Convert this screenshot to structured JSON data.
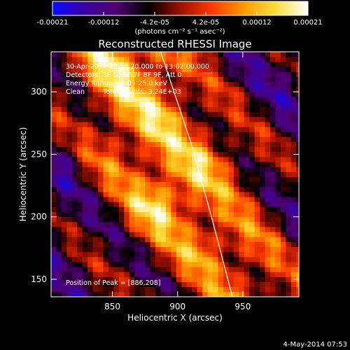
{
  "chart_data": {
    "type": "heatmap",
    "title": "Reconstructed RHESSI Image",
    "xlabel": "Heliocentric X (arcsec)",
    "ylabel": "Heliocentric Y (arcsec)",
    "xlim": [
      803,
      993
    ],
    "ylim": [
      136,
      332
    ],
    "x_ticks": [
      850,
      900,
      950
    ],
    "y_ticks": [
      150,
      200,
      250,
      300
    ],
    "x_tick_labels": [
      "850",
      "900",
      "950"
    ],
    "y_tick_labels": [
      "150",
      "200",
      "250",
      "300"
    ],
    "colorbar": {
      "range": [
        -0.00021,
        0.00021
      ],
      "tick_labels": [
        "-0.00021",
        "-0.00012",
        "-4.2e-05",
        "4.2e-05",
        "0.00012",
        "0.00021"
      ],
      "unit_label": "(photons cm⁻² s⁻¹ asec⁻²)",
      "colormap": [
        "#0a0aff",
        "#3a00a0",
        "#500070",
        "#000000",
        "#9a1000",
        "#ff3a00",
        "#ff9a00",
        "#ffe040",
        "#ffffff"
      ]
    },
    "annotations": {
      "time": "30-Apr-2012 12:58:20.000 to 13:02:00.000",
      "detectors": "Detectors: 3F 5F 6F 7F 8F 9F, Att 0",
      "energy": "Energy Range: 12.0 - 25.0 keV",
      "clean_label": "Clean",
      "total_counts": "Total Counts: 3.24E+03",
      "peak": "Position of Peak = [886,208]"
    },
    "peak_position": [
      886,
      208
    ],
    "limb_curve": [
      [
        887,
        332
      ],
      [
        910,
        260
      ],
      [
        926,
        200
      ],
      [
        942,
        136
      ]
    ],
    "image_description_grid": {
      "x_centers": [
        815,
        850,
        885,
        920,
        955,
        985
      ],
      "y_centers": [
        315,
        280,
        245,
        210,
        175,
        145
      ],
      "relative_values": [
        [
          0.35,
          0.9,
          0.7,
          0.25,
          0.1,
          0.0
        ],
        [
          0.2,
          0.6,
          0.85,
          0.45,
          0.15,
          0.1
        ],
        [
          0.05,
          0.55,
          0.65,
          0.8,
          0.35,
          0.1
        ],
        [
          0.1,
          0.3,
          1.0,
          0.6,
          0.4,
          0.15
        ],
        [
          0.05,
          0.2,
          0.4,
          0.75,
          0.55,
          0.3
        ],
        [
          0.15,
          0.1,
          0.25,
          0.45,
          0.6,
          0.35
        ]
      ]
    }
  },
  "footer": {
    "date": "4-May-2014 07:53"
  }
}
